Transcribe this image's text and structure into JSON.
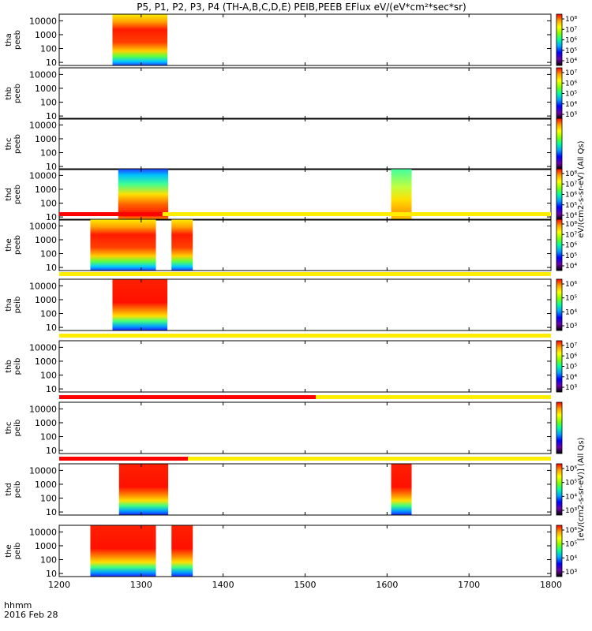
{
  "chart_data": {
    "type": "heatmap",
    "title": "P5, P1, P2, P3, P4 (TH-A,B,C,D,E) PEIB,PEEB EFlux eV/(eV*cm²*sec*sr)",
    "x_label_line1": "hhmm",
    "x_label_line2": "2016 Feb 28",
    "x_ticks": [
      "1200",
      "1300",
      "1400",
      "1500",
      "1600",
      "1700",
      "1800"
    ],
    "x_range": [
      1200,
      1800
    ],
    "y_ticks": [
      "10",
      "100",
      "1000",
      "10000"
    ],
    "y_scale": "log",
    "y_range": [
      6,
      30000
    ],
    "colorbar_colors": [
      "#000000",
      "#6a00a8",
      "#0000ff",
      "#00a0ff",
      "#00ffa0",
      "#80ff00",
      "#ffff00",
      "#ffa000",
      "#ff0000"
    ],
    "colorbar_label_peeb": "eV/(cm2-s-sr-eV) (All Qs)",
    "colorbar_label_peib": "[eV/(cm2-s-sr-eV)] (All Qs)",
    "panels": [
      {
        "ylabel": "tha\npeeb",
        "cbar_ticks": [
          "10⁸",
          "10⁷",
          "10⁶",
          "10⁵",
          "10⁴"
        ],
        "blocks": [
          {
            "x0": 1265,
            "x1": 1332,
            "profile": "red_mid"
          }
        ],
        "bar": null
      },
      {
        "ylabel": "thb\npeeb",
        "cbar_ticks": [
          "10⁷",
          "10⁶",
          "10⁵",
          "10⁴",
          "10³"
        ],
        "blocks": [],
        "bar": null
      },
      {
        "ylabel": "thc\npeeb",
        "cbar_ticks": [],
        "blocks": [],
        "bar": null
      },
      {
        "ylabel": "thd\npeeb",
        "cbar_ticks": [
          "10⁸",
          "10⁷",
          "10⁶",
          "10⁵",
          "10⁴"
        ],
        "blocks": [
          {
            "x0": 1272,
            "x1": 1333,
            "profile": "blue_top_red"
          },
          {
            "x0": 1605,
            "x1": 1630,
            "profile": "green_orange"
          }
        ],
        "bar": null
      },
      {
        "ylabel": "the\npeeb",
        "cbar_ticks": [
          "10⁸",
          "10⁷",
          "10⁶",
          "10⁵",
          "10⁴"
        ],
        "blocks": [
          {
            "x0": 1238,
            "x1": 1318,
            "profile": "red_mid"
          },
          {
            "x0": 1337,
            "x1": 1363,
            "profile": "red_mid"
          }
        ],
        "bar": {
          "red_end": 1326
        }
      },
      {
        "ylabel": "tha\npeib",
        "cbar_ticks": [
          "10⁶",
          "10⁵",
          "10⁴",
          "10³"
        ],
        "blocks": [
          {
            "x0": 1265,
            "x1": 1332,
            "profile": "red_high"
          }
        ],
        "bar": {
          "red_end": null
        }
      },
      {
        "ylabel": "thb\npeib",
        "cbar_ticks": [
          "10⁷",
          "10⁶",
          "10⁵",
          "10⁴",
          "10³"
        ],
        "blocks": [],
        "bar": {
          "red_end": null
        }
      },
      {
        "ylabel": "thc\npeib",
        "cbar_ticks": [],
        "blocks": [],
        "bar": {
          "red_end": 1513
        }
      },
      {
        "ylabel": "thd\npeib",
        "cbar_ticks": [
          "10⁶",
          "10⁵",
          "10⁴",
          "10³"
        ],
        "blocks": [
          {
            "x0": 1273,
            "x1": 1333,
            "profile": "red_high"
          },
          {
            "x0": 1605,
            "x1": 1630,
            "profile": "red_high"
          }
        ],
        "bar": {
          "red_end": 1357
        }
      },
      {
        "ylabel": "the\npeib",
        "cbar_ticks": [
          "10⁶",
          "10⁵",
          "10⁴",
          "10³"
        ],
        "blocks": [
          {
            "x0": 1238,
            "x1": 1318,
            "profile": "red_high"
          },
          {
            "x0": 1337,
            "x1": 1363,
            "profile": "red_high"
          }
        ],
        "bar": null
      }
    ]
  }
}
